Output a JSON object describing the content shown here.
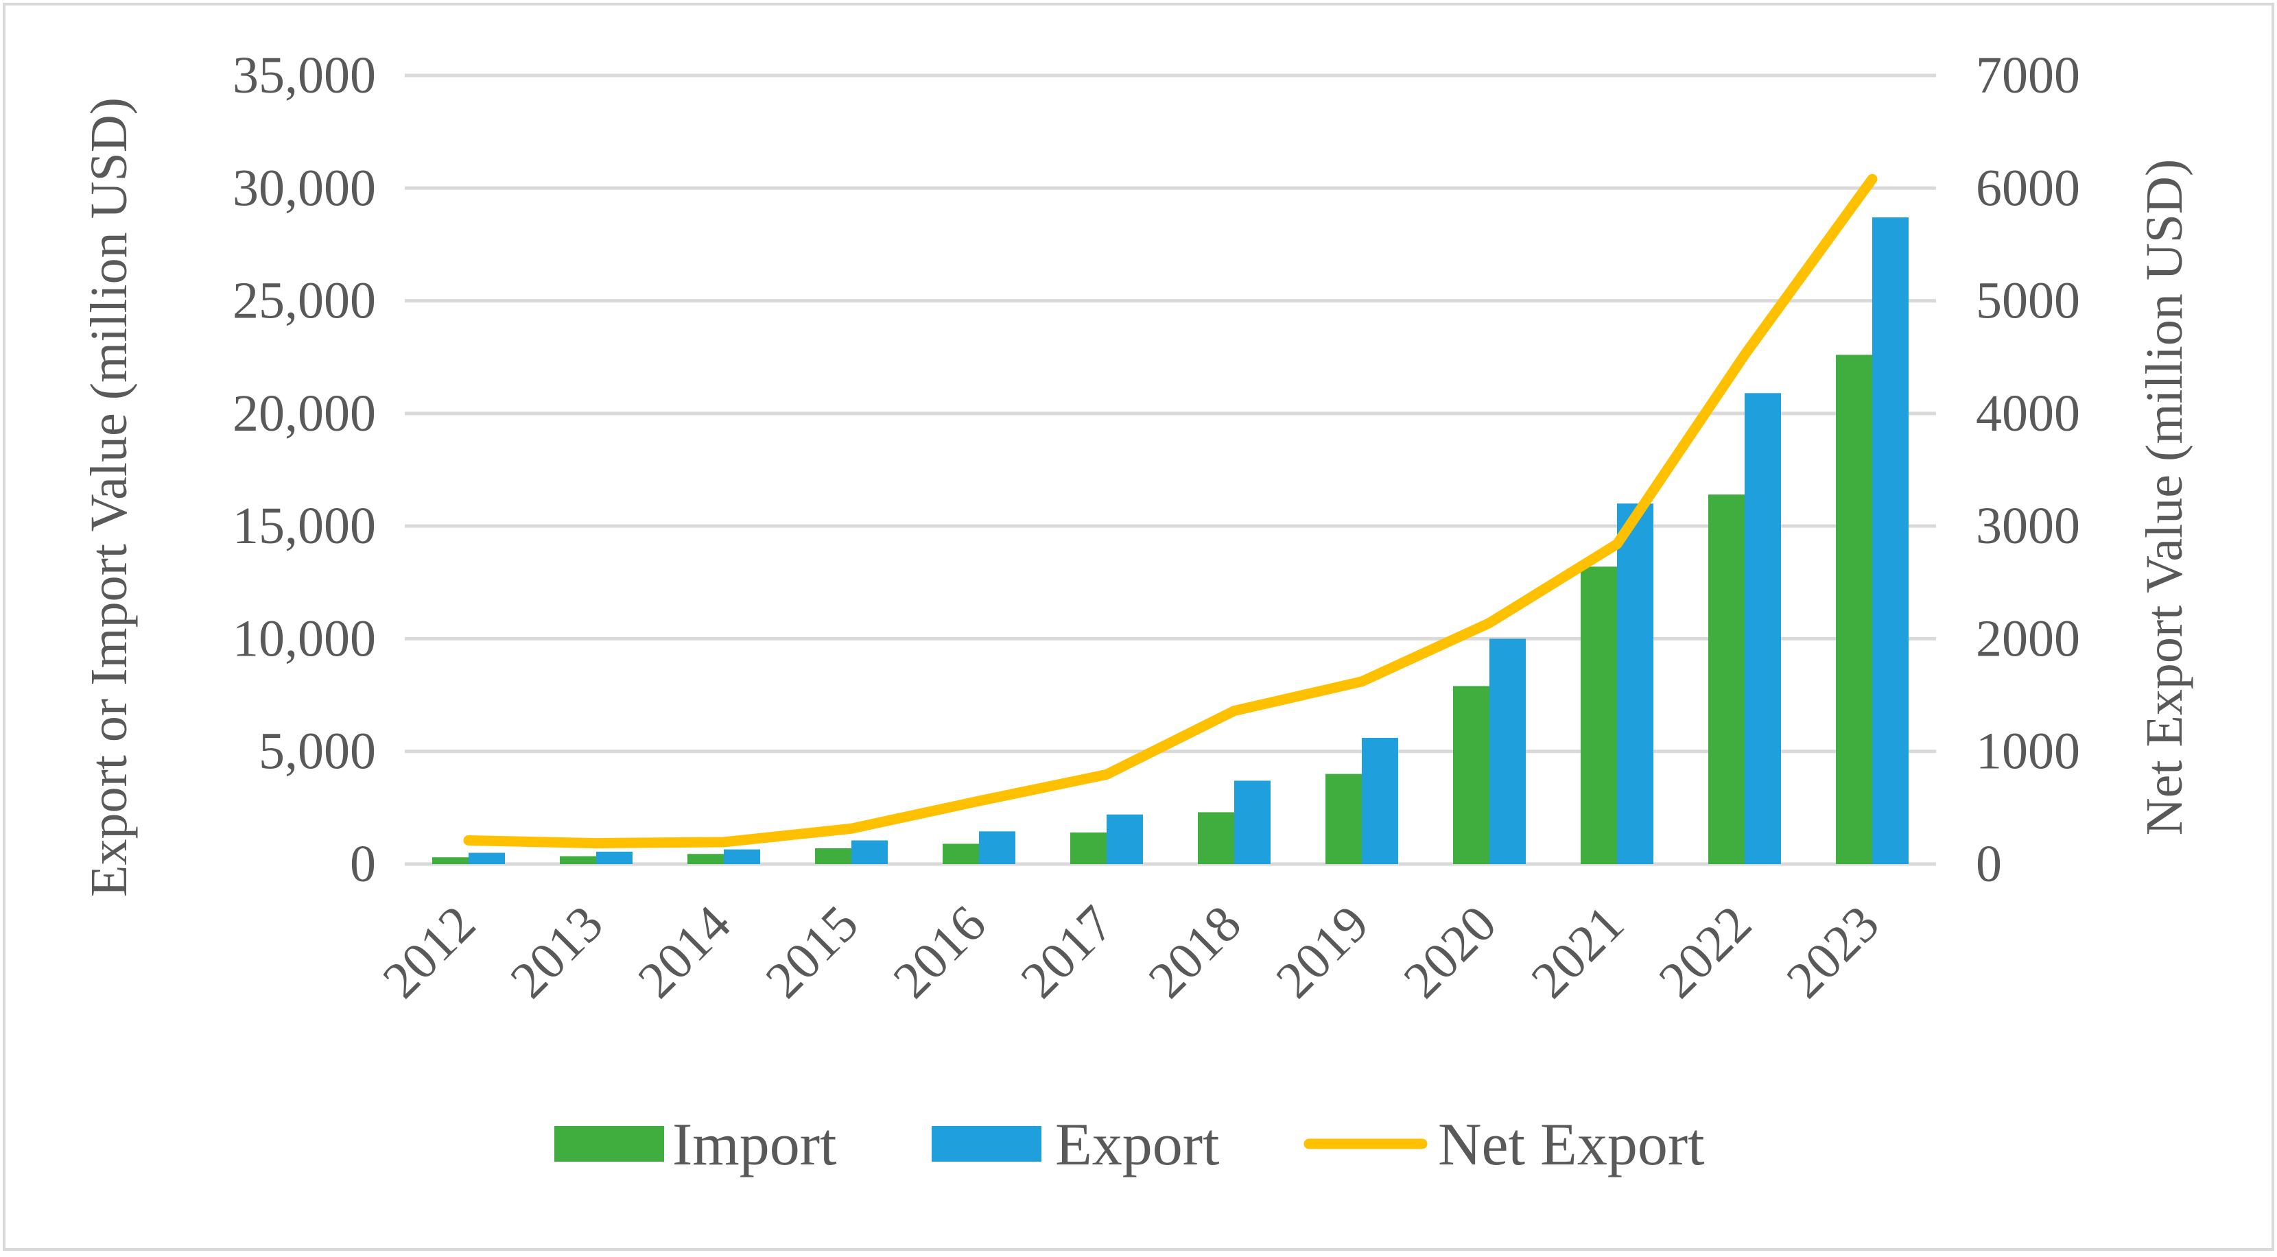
{
  "chart_data": {
    "type": "bar",
    "title": "",
    "categories": [
      "2012",
      "2013",
      "2014",
      "2015",
      "2016",
      "2017",
      "2018",
      "2019",
      "2020",
      "2021",
      "2022",
      "2023"
    ],
    "series": [
      {
        "name": "Import",
        "axis": "left",
        "kind": "bar",
        "color": "#3fae3f",
        "values": [
          300,
          350,
          450,
          700,
          900,
          1400,
          2300,
          4000,
          7900,
          13200,
          16400,
          22600
        ]
      },
      {
        "name": "Export",
        "axis": "left",
        "kind": "bar",
        "color": "#1f9fdb",
        "values": [
          500,
          550,
          650,
          1050,
          1450,
          2200,
          3700,
          5600,
          10000,
          16000,
          20900,
          28700
        ]
      },
      {
        "name": "Net Export",
        "axis": "right",
        "kind": "line",
        "color": "#ffc000",
        "values": [
          210,
          185,
          195,
          315,
          560,
          795,
          1360,
          1620,
          2140,
          2840,
          4520,
          6080
        ]
      }
    ],
    "y_left": {
      "label": "Export or Import Value (million USD)",
      "min": 0,
      "max": 35000,
      "step": 5000,
      "tick_labels": [
        "0",
        "5,000",
        "10,000",
        "15,000",
        "20,000",
        "25,000",
        "30,000",
        "35,000"
      ]
    },
    "y_right": {
      "label": "Net Export Value (million USD)",
      "min": 0,
      "max": 7000,
      "step": 1000,
      "tick_labels": [
        "0",
        "1000",
        "2000",
        "3000",
        "4000",
        "5000",
        "6000",
        "7000"
      ]
    },
    "grid": true,
    "legend": {
      "position": "bottom",
      "entries": [
        "Import",
        "Export",
        "Net Export"
      ]
    }
  }
}
